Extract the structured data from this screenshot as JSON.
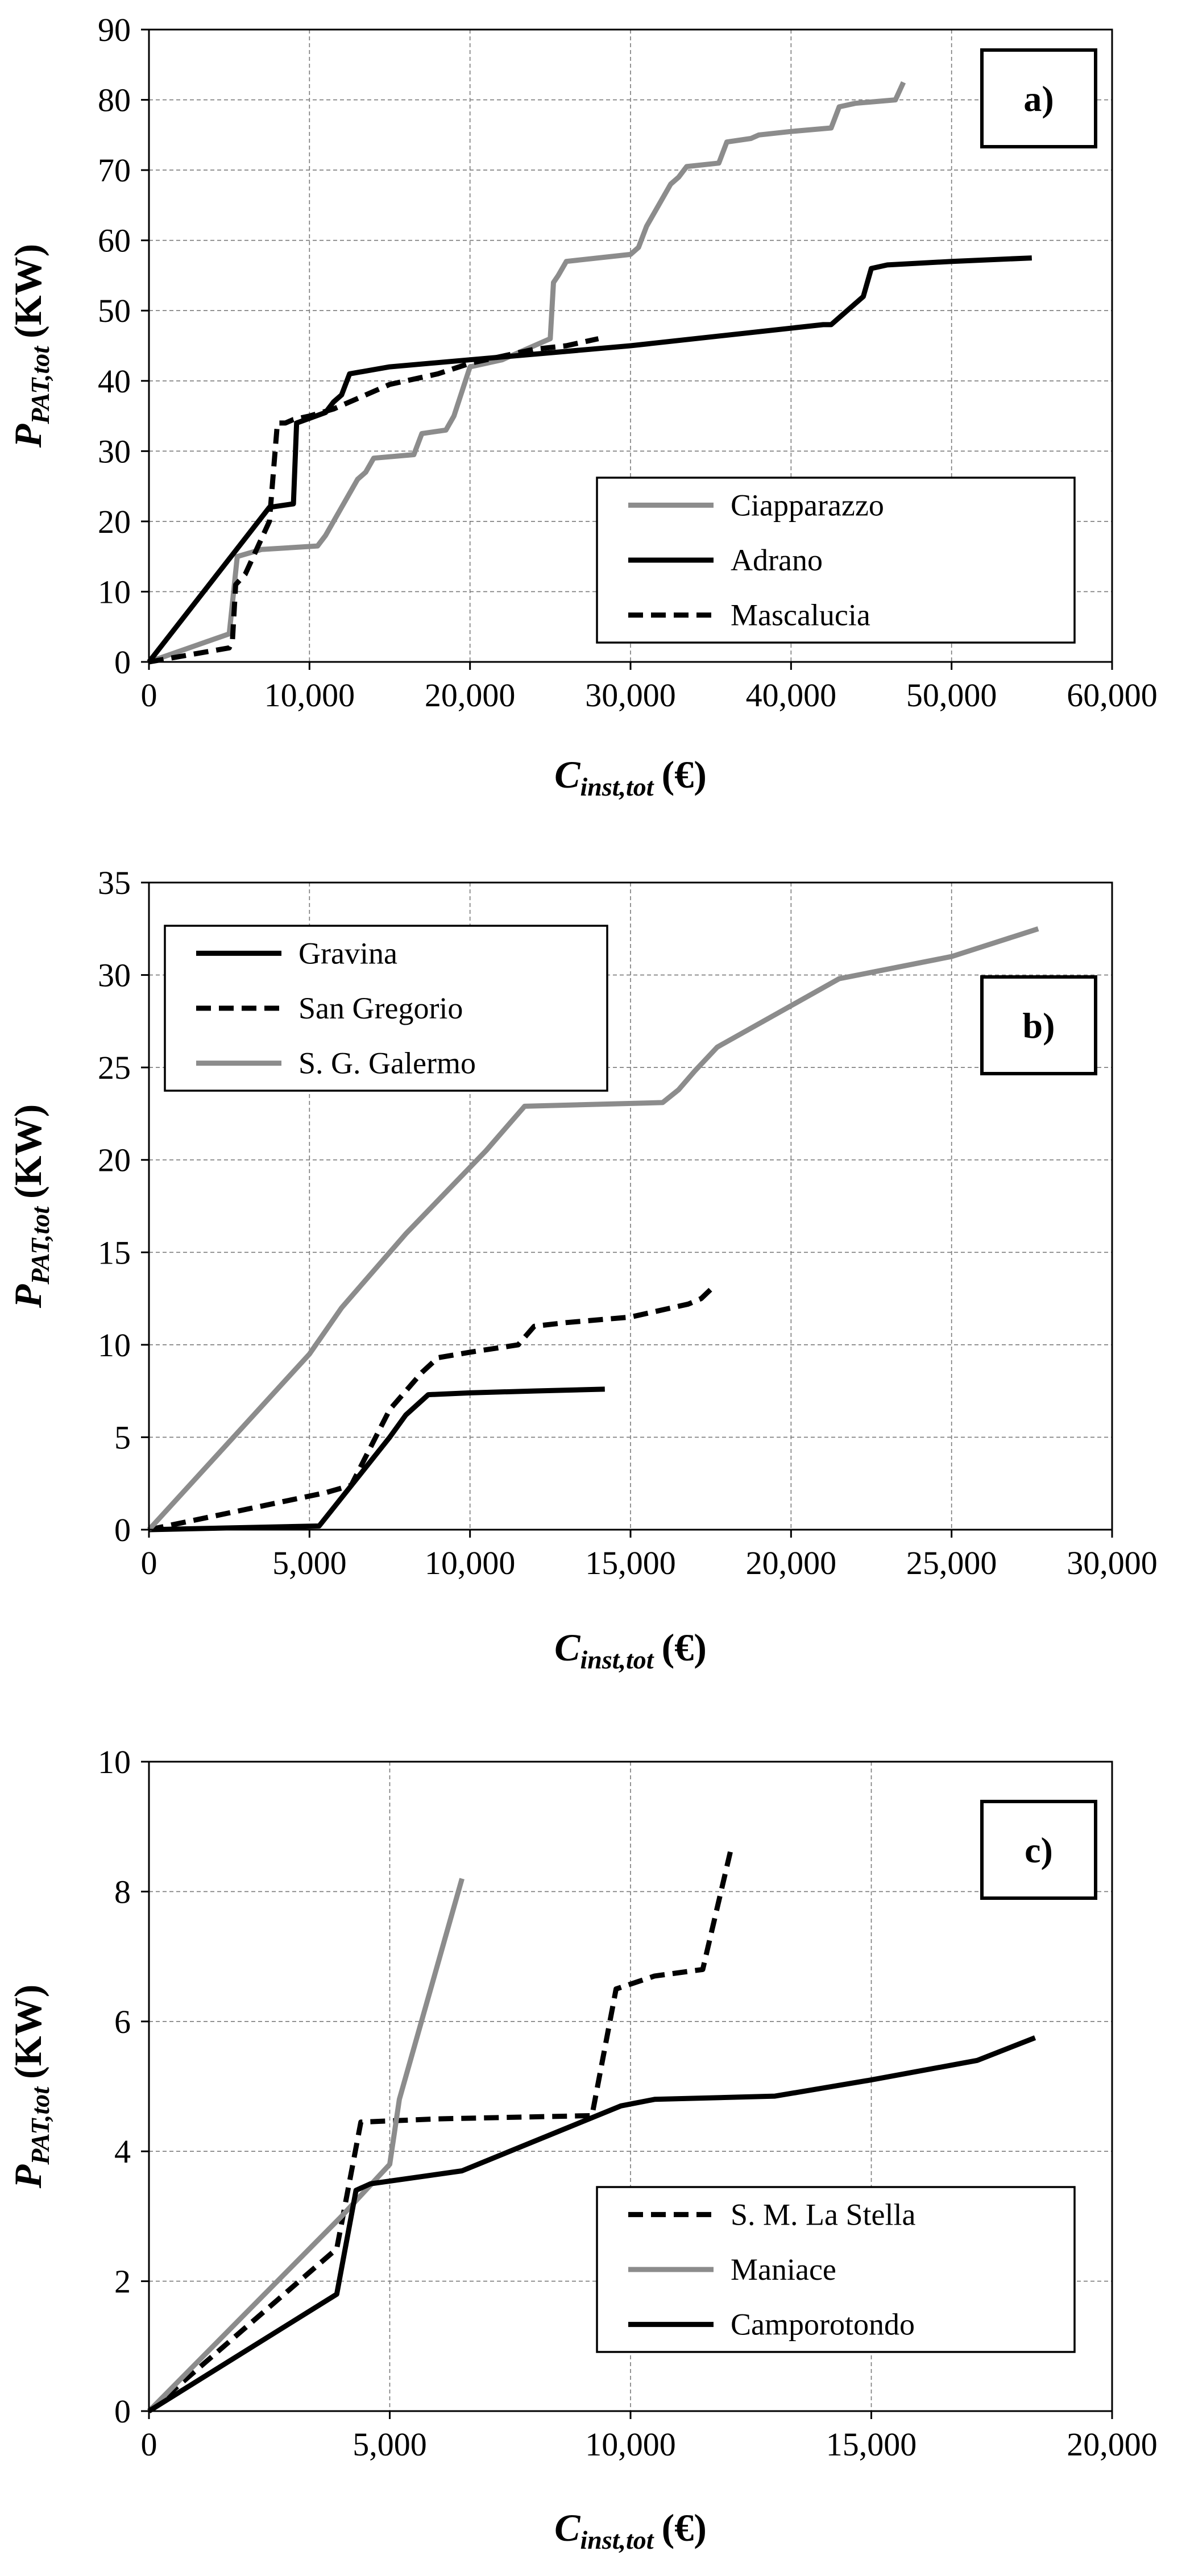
{
  "chart_data": [
    {
      "type": "line",
      "panel_label": "a)",
      "xlabel": {
        "main": "C",
        "sub": "inst,tot",
        "unit": "(€)"
      },
      "ylabel": {
        "main": "P",
        "sub": "PAT,tot",
        "unit": "(KW)"
      },
      "xlim": [
        0,
        60000
      ],
      "ylim": [
        0,
        90
      ],
      "xticks": [
        0,
        10000,
        20000,
        30000,
        40000,
        50000,
        60000
      ],
      "xtick_labels": [
        "0",
        "10,000",
        "20,000",
        "30,000",
        "40,000",
        "50,000",
        "60,000"
      ],
      "yticks": [
        0,
        10,
        20,
        30,
        40,
        50,
        60,
        70,
        80,
        90
      ],
      "ytick_labels": [
        "0",
        "10",
        "20",
        "30",
        "40",
        "50",
        "60",
        "70",
        "80",
        "90"
      ],
      "grid": true,
      "legend_position": "bottom-right",
      "series": [
        {
          "name": "Ciapparazzo",
          "color": "#8c8c8c",
          "dash": "solid",
          "x": [
            0,
            5000,
            5500,
            7000,
            10500,
            11000,
            11500,
            12000,
            12500,
            13000,
            13500,
            14000,
            16500,
            17000,
            18500,
            19000,
            20000,
            22000,
            24500,
            25000,
            25200,
            25500,
            26000,
            30000,
            30500,
            31000,
            32000,
            32500,
            33000,
            33500,
            35500,
            36000,
            37500,
            38000,
            40000,
            42500,
            43000,
            44000,
            46500,
            47000
          ],
          "y": [
            0,
            4,
            15,
            16,
            16.5,
            18,
            20,
            22,
            24,
            26,
            27,
            29,
            29.5,
            32.5,
            33,
            35,
            42,
            43,
            45.5,
            46,
            54,
            55,
            57,
            58,
            59,
            62,
            66,
            68,
            69,
            70.5,
            71,
            74,
            74.5,
            75,
            75.5,
            76,
            79,
            79.5,
            80,
            82.5
          ]
        },
        {
          "name": "Adrano",
          "color": "#000000",
          "dash": "solid",
          "x": [
            0,
            7500,
            9000,
            9200,
            11000,
            11500,
            12000,
            12500,
            15000,
            20000,
            30000,
            42000,
            42500,
            44500,
            45000,
            46000,
            50000,
            55000
          ],
          "y": [
            0,
            22,
            22.5,
            34,
            35.5,
            37,
            38,
            41,
            42,
            43,
            45,
            48,
            48,
            52,
            56,
            56.5,
            57,
            57.5
          ]
        },
        {
          "name": "Mascalucia",
          "color": "#000000",
          "dash": "dashed",
          "x": [
            0,
            5000,
            5200,
            5400,
            6000,
            7500,
            8000,
            8500,
            9000,
            10000,
            11500,
            12000,
            13000,
            15000,
            18000,
            20000,
            22000,
            24000,
            26000,
            28000
          ],
          "y": [
            0,
            2,
            3,
            11,
            12.5,
            20,
            34,
            34,
            34.5,
            35,
            36,
            36.5,
            37.5,
            39.5,
            41,
            42.5,
            43.5,
            44.5,
            45,
            46
          ]
        }
      ]
    },
    {
      "type": "line",
      "panel_label": "b)",
      "xlabel": {
        "main": "C",
        "sub": "inst,tot",
        "unit": "(€)"
      },
      "ylabel": {
        "main": "P",
        "sub": "PAT,tot",
        "unit": "(KW)"
      },
      "xlim": [
        0,
        30000
      ],
      "ylim": [
        0,
        35
      ],
      "xticks": [
        0,
        5000,
        10000,
        15000,
        20000,
        25000,
        30000
      ],
      "xtick_labels": [
        "0",
        "5,000",
        "10,000",
        "15,000",
        "20,000",
        "25,000",
        "30,000"
      ],
      "yticks": [
        0,
        5,
        10,
        15,
        20,
        25,
        30,
        35
      ],
      "ytick_labels": [
        "0",
        "5",
        "10",
        "15",
        "20",
        "25",
        "30",
        "35"
      ],
      "grid": true,
      "legend_position": "top-left",
      "series": [
        {
          "name": "Gravina",
          "color": "#000000",
          "dash": "solid",
          "x": [
            0,
            5300,
            7500,
            8000,
            8700,
            10000,
            12000,
            14200
          ],
          "y": [
            0,
            0.2,
            5,
            6.2,
            7.3,
            7.4,
            7.5,
            7.6
          ]
        },
        {
          "name": "San Gregorio",
          "color": "#000000",
          "dash": "dashed",
          "x": [
            0,
            5500,
            6300,
            7500,
            8500,
            9000,
            10000,
            11500,
            12000,
            13000,
            15000,
            16800,
            17200,
            17500
          ],
          "y": [
            0,
            2,
            2.4,
            6.5,
            8.5,
            9.3,
            9.6,
            10,
            11,
            11.2,
            11.5,
            12.2,
            12.5,
            13
          ]
        },
        {
          "name": "S. G. Galermo",
          "color": "#8c8c8c",
          "dash": "solid",
          "x": [
            0,
            5000,
            6000,
            8000,
            10500,
            11000,
            11700,
            16000,
            16500,
            17000,
            17700,
            21500,
            25000,
            27700
          ],
          "y": [
            0,
            9.5,
            12,
            16,
            20.5,
            21.5,
            22.9,
            23.1,
            23.8,
            24.8,
            26.1,
            29.8,
            31,
            32.5
          ]
        }
      ]
    },
    {
      "type": "line",
      "panel_label": "c)",
      "xlabel": {
        "main": "C",
        "sub": "inst,tot",
        "unit": "(€)"
      },
      "ylabel": {
        "main": "P",
        "sub": "PAT,tot",
        "unit": "(KW)"
      },
      "xlim": [
        0,
        20000
      ],
      "ylim": [
        0,
        10
      ],
      "xticks": [
        0,
        5000,
        10000,
        15000,
        20000
      ],
      "xtick_labels": [
        "0",
        "5,000",
        "10,000",
        "15,000",
        "20,000"
      ],
      "yticks": [
        0,
        2,
        4,
        6,
        8,
        10
      ],
      "ytick_labels": [
        "0",
        "2",
        "4",
        "6",
        "8",
        "10"
      ],
      "grid": true,
      "legend_position": "bottom-right",
      "series": [
        {
          "name": "S. M. La Stella",
          "color": "#000000",
          "dash": "dashed",
          "x": [
            0,
            3900,
            4400,
            6000,
            9200,
            9700,
            10500,
            11500,
            12100
          ],
          "y": [
            0,
            2.5,
            4.45,
            4.5,
            4.55,
            6.5,
            6.7,
            6.8,
            8.7
          ]
        },
        {
          "name": "Maniace",
          "color": "#8c8c8c",
          "dash": "solid",
          "x": [
            0,
            4000,
            5000,
            5200,
            6500
          ],
          "y": [
            0,
            3,
            3.8,
            4.8,
            8.2
          ]
        },
        {
          "name": "Camporotondo",
          "color": "#000000",
          "dash": "solid",
          "x": [
            0,
            3900,
            4300,
            4600,
            6500,
            9800,
            10500,
            13000,
            15000,
            17200,
            18400
          ],
          "y": [
            0,
            1.8,
            3.4,
            3.5,
            3.7,
            4.7,
            4.8,
            4.85,
            5.1,
            5.4,
            5.75
          ]
        }
      ]
    }
  ]
}
